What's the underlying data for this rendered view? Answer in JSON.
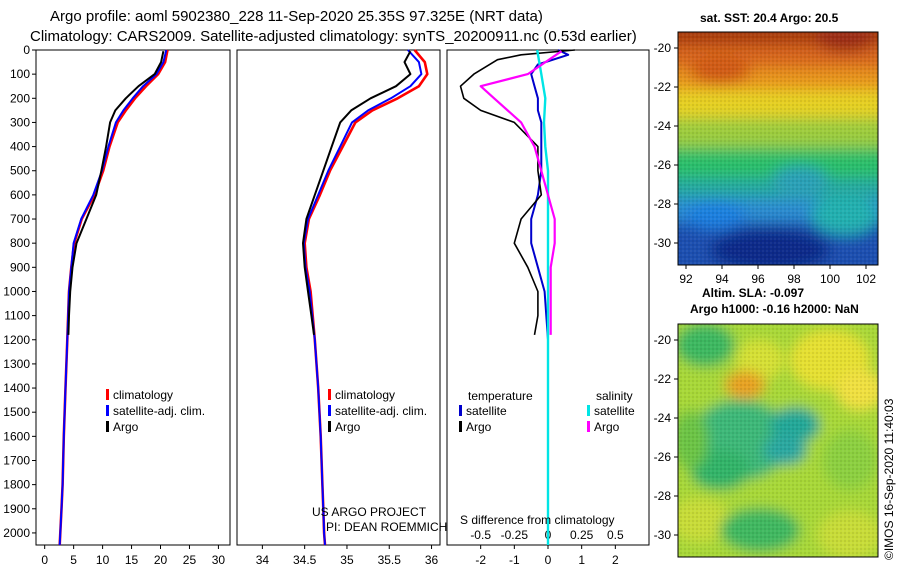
{
  "header": {
    "title_line1": "Argo profile: aoml 5902380_228 11-Sep-2020 25.35S 97.325E (NRT data)",
    "title_line2": "Climatology: CARS2009. Satellite-adjusted climatology: synTS_20200911.nc (0.53d earlier)"
  },
  "colors": {
    "climatology": "#ff0000",
    "satellite_adj": "#0000ff",
    "argo": "#000000",
    "temp_satellite": "#0000cc",
    "sal_satellite": "#00e5e5",
    "sal_argo": "#ff00ff"
  },
  "chart_data": [
    {
      "type": "line",
      "name": "temperature",
      "ylabel": "",
      "ylim": [
        2050,
        0
      ],
      "yticks": [
        0,
        100,
        200,
        300,
        400,
        500,
        600,
        700,
        800,
        900,
        1000,
        1100,
        1200,
        1300,
        1400,
        1500,
        1600,
        1700,
        1800,
        1900,
        2000
      ],
      "ytick_labels": [
        "0",
        "100",
        "200",
        "300",
        "400",
        "500",
        "600",
        "700",
        "800",
        "900",
        "1000",
        "1100",
        "1200",
        "1300",
        "1400",
        "1500",
        "1600",
        "1700",
        "1800",
        "1900",
        "2000"
      ],
      "xlim": [
        -1.5,
        32
      ],
      "xticks": [
        0,
        5,
        10,
        15,
        20,
        25,
        30
      ],
      "xtick_labels": [
        "0",
        "5",
        "10",
        "15",
        "20",
        "25",
        "30"
      ],
      "series": [
        {
          "name": "climatology",
          "x": [
            21.2,
            20.8,
            19.6,
            17.5,
            15.6,
            14.0,
            12.6,
            11.2,
            10.1,
            8.6,
            6.4,
            5.1,
            4.6,
            4.2,
            3.9,
            3.6,
            3.3,
            3.1,
            2.9,
            2.7,
            2.6,
            2.6
          ],
          "y": [
            0,
            50,
            100,
            150,
            200,
            250,
            300,
            400,
            500,
            600,
            700,
            800,
            900,
            1000,
            1200,
            1400,
            1600,
            1800,
            1900,
            2000,
            2050,
            2050
          ]
        },
        {
          "name": "satellite-adj. clim.",
          "x": [
            21.0,
            20.5,
            19.3,
            17.0,
            15.2,
            13.6,
            12.3,
            11.0,
            9.9,
            8.4,
            6.3,
            5.0,
            4.6,
            4.2,
            3.9,
            3.6,
            3.3,
            3.1,
            2.9,
            2.7,
            2.6,
            2.6
          ],
          "y": [
            0,
            50,
            100,
            150,
            200,
            250,
            300,
            400,
            500,
            600,
            700,
            800,
            900,
            1000,
            1200,
            1400,
            1600,
            1800,
            1900,
            2000,
            2050,
            2050
          ]
        },
        {
          "name": "Argo",
          "x": [
            20.5,
            20.1,
            19.0,
            16.2,
            14.0,
            12.2,
            11.3,
            10.6,
            9.8,
            8.9,
            7.2,
            5.5,
            4.8,
            4.4,
            4.2,
            4.1
          ],
          "y": [
            5,
            50,
            100,
            150,
            200,
            250,
            300,
            400,
            500,
            600,
            700,
            800,
            900,
            1000,
            1100,
            1180
          ]
        }
      ],
      "legend": [
        "climatology",
        "satellite-adj. clim.",
        "Argo"
      ]
    },
    {
      "type": "line",
      "name": "salinity",
      "ylim": [
        2050,
        0
      ],
      "xlim": [
        33.7,
        36.1
      ],
      "xticks": [
        34,
        34.5,
        35,
        35.5,
        36
      ],
      "xtick_labels": [
        "34",
        "34.5",
        "35",
        "35.5",
        "36"
      ],
      "series": [
        {
          "name": "climatology",
          "x": [
            35.8,
            35.92,
            35.95,
            35.85,
            35.6,
            35.3,
            35.1,
            34.95,
            34.8,
            34.68,
            34.55,
            34.5,
            34.52,
            34.57,
            34.62,
            34.66,
            34.69,
            34.71,
            34.72,
            34.73,
            34.74
          ],
          "y": [
            0,
            50,
            100,
            150,
            200,
            250,
            300,
            400,
            500,
            600,
            700,
            800,
            900,
            1000,
            1200,
            1400,
            1600,
            1800,
            1900,
            2000,
            2050
          ]
        },
        {
          "name": "satellite-adj. clim.",
          "x": [
            35.72,
            35.85,
            35.88,
            35.75,
            35.52,
            35.25,
            35.06,
            34.92,
            34.78,
            34.66,
            34.54,
            34.49,
            34.51,
            34.56,
            34.62,
            34.66,
            34.69,
            34.71,
            34.72,
            34.73,
            34.74
          ],
          "y": [
            0,
            50,
            100,
            150,
            200,
            250,
            300,
            400,
            500,
            600,
            700,
            800,
            900,
            1000,
            1200,
            1400,
            1600,
            1800,
            1900,
            2000,
            2050
          ]
        },
        {
          "name": "Argo",
          "x": [
            35.75,
            35.68,
            35.75,
            35.58,
            35.28,
            35.05,
            34.92,
            34.82,
            34.72,
            34.62,
            34.52,
            34.48,
            34.5,
            34.54,
            34.58,
            34.61
          ],
          "y": [
            5,
            50,
            100,
            150,
            200,
            250,
            300,
            400,
            500,
            600,
            700,
            800,
            900,
            1000,
            1100,
            1180
          ]
        }
      ],
      "legend": [
        "climatology",
        "satellite-adj. clim.",
        "Argo"
      ],
      "annotations": [
        "US ARGO PROJECT",
        "PI: DEAN ROEMMICH"
      ]
    },
    {
      "type": "line",
      "name": "difference from climatology",
      "ylim": [
        2050,
        0
      ],
      "xlim": [
        -3.0,
        3.0
      ],
      "xticks": [
        -2,
        -1,
        0,
        1,
        2
      ],
      "xtick_labels": [
        "-2",
        "-1",
        "0",
        "1",
        "2"
      ],
      "secondary_xticks": [
        -0.5,
        -0.25,
        0,
        0.25,
        0.5
      ],
      "secondary_xtick_labels": [
        "-0.5",
        "-0.25",
        "0",
        "0.25",
        "0.5"
      ],
      "xlabel": "S difference from climatology",
      "series": [
        {
          "name": "temperature satellite",
          "x": [
            0.3,
            0.6,
            -0.3,
            -0.5,
            -0.4,
            -0.3,
            -0.3,
            -0.2,
            -0.2,
            -0.2,
            -0.3,
            -0.5,
            -0.5,
            -0.3,
            -0.1,
            0.0,
            0.0,
            0.0
          ],
          "y": [
            0,
            20,
            60,
            100,
            150,
            200,
            250,
            300,
            400,
            500,
            600,
            700,
            800,
            900,
            1000,
            1200,
            1400,
            1500
          ]
        },
        {
          "name": "temperature Argo",
          "x": [
            0.8,
            -0.8,
            -1.5,
            -2.2,
            -2.6,
            -2.5,
            -2.0,
            -1.0,
            -0.3,
            -0.3,
            -0.2,
            -0.8,
            -1.0,
            -0.6,
            -0.3,
            -0.3,
            -0.4
          ],
          "y": [
            0,
            20,
            40,
            100,
            150,
            200,
            250,
            300,
            400,
            500,
            600,
            700,
            800,
            900,
            1000,
            1100,
            1180
          ]
        },
        {
          "name": "salinity satellite",
          "x": [
            -0.08,
            -0.05,
            -0.02,
            -0.03,
            -0.02,
            0.0,
            0.0,
            0.0,
            0.0,
            0.0,
            0.0,
            0.0,
            0.0,
            0.0,
            0.0,
            0.0,
            0.0,
            0.0
          ],
          "y": [
            0,
            100,
            200,
            300,
            400,
            500,
            600,
            700,
            800,
            900,
            1000,
            1200,
            1400,
            1600,
            1800,
            1900,
            2000,
            2050
          ]
        },
        {
          "name": "salinity Argo",
          "x": [
            0.1,
            -0.15,
            -0.5,
            -0.4,
            -0.2,
            -0.1,
            -0.05,
            0.0,
            0.05,
            0.05,
            0.02,
            0.02,
            0.02
          ],
          "y": [
            5,
            100,
            150,
            200,
            300,
            400,
            500,
            600,
            700,
            800,
            900,
            1000,
            1180
          ]
        }
      ],
      "legend": {
        "temperature": [
          "satellite",
          "Argo"
        ],
        "salinity": [
          "satellite",
          "Argo"
        ]
      },
      "legend_headers": [
        "temperature",
        "salinity"
      ]
    }
  ],
  "maps": [
    {
      "title": "sat. SST: 20.4 Argo: 20.5",
      "lon_ticks": [
        "92",
        "94",
        "96",
        "98",
        "100",
        "102"
      ],
      "lat_ticks": [
        "-20",
        "-22",
        "-24",
        "-26",
        "-28",
        "-30"
      ]
    },
    {
      "title_line1": "Altim. SLA: -0.097",
      "title_line2": "Argo h1000: -0.16 h2000: NaN",
      "lat_ticks": [
        "-20",
        "-22",
        "-24",
        "-26",
        "-28",
        "-30"
      ]
    }
  ],
  "footer": {
    "stamp": "©IMOS 16-Sep-2020 11:40:03"
  }
}
